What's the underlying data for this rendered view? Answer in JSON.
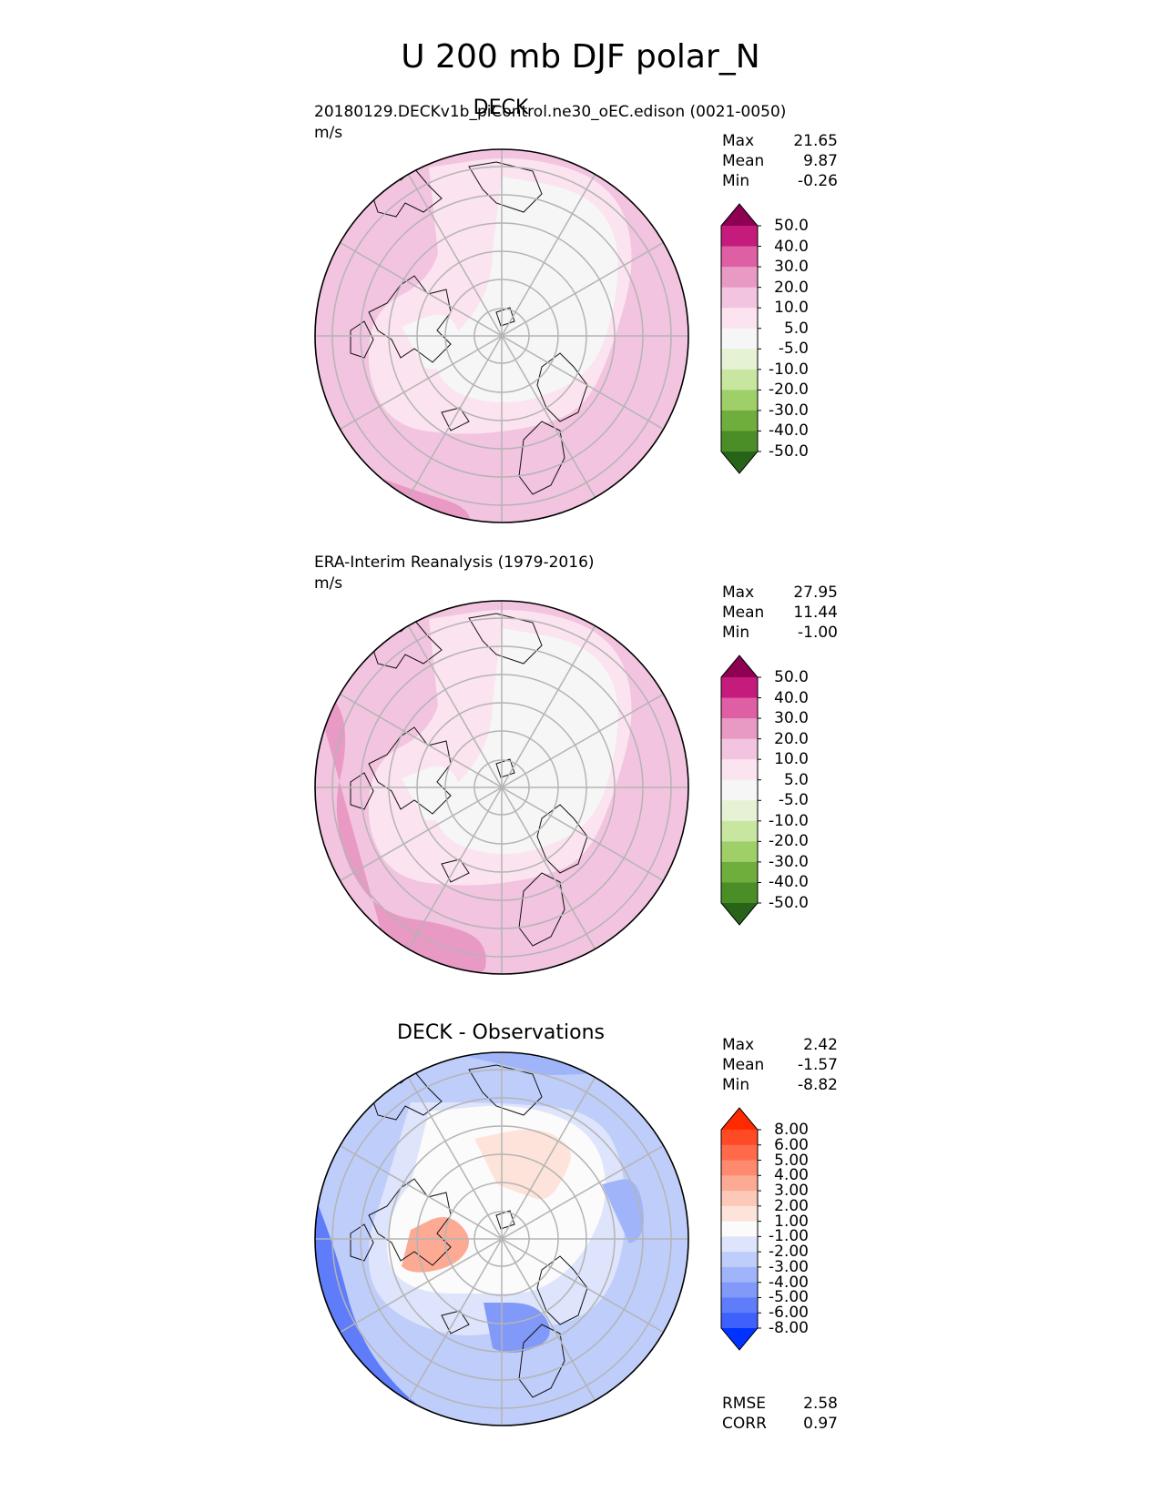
{
  "title": "U 200 mb DJF polar_N",
  "panels": [
    {
      "title": "DECK",
      "subtitle": "20180129.DECKv1b_piControl.ne30_oEC.edison (0021-0050)",
      "units": "m/s",
      "stats": [
        {
          "label": "Max",
          "value": "21.65"
        },
        {
          "label": "Mean",
          "value": "9.87"
        },
        {
          "label": "Min",
          "value": "-0.26"
        }
      ],
      "colorbar": {
        "ticks": [
          "50.0",
          "40.0",
          "30.0",
          "20.0",
          "10.0",
          "5.0",
          "-5.0",
          "-10.0",
          "-20.0",
          "-30.0",
          "-40.0",
          "-50.0"
        ],
        "top_color": "#8e0152",
        "bottom_color": "#276419",
        "colors": [
          "#c51b7d",
          "#de5fa4",
          "#e899c4",
          "#f2c4df",
          "#fbe3ef",
          "#f6f6f6",
          "#e5f2d3",
          "#c9e6a1",
          "#9fcf69",
          "#6fad3d",
          "#4b8e27"
        ]
      }
    },
    {
      "title": "",
      "subtitle": "ERA-Interim Reanalysis (1979-2016)",
      "units": "m/s",
      "stats": [
        {
          "label": "Max",
          "value": "27.95"
        },
        {
          "label": "Mean",
          "value": "11.44"
        },
        {
          "label": "Min",
          "value": "-1.00"
        }
      ],
      "colorbar": {
        "ticks": [
          "50.0",
          "40.0",
          "30.0",
          "20.0",
          "10.0",
          "5.0",
          "-5.0",
          "-10.0",
          "-20.0",
          "-30.0",
          "-40.0",
          "-50.0"
        ],
        "top_color": "#8e0152",
        "bottom_color": "#276419",
        "colors": [
          "#c51b7d",
          "#de5fa4",
          "#e899c4",
          "#f2c4df",
          "#fbe3ef",
          "#f6f6f6",
          "#e5f2d3",
          "#c9e6a1",
          "#9fcf69",
          "#6fad3d",
          "#4b8e27"
        ]
      }
    },
    {
      "title": "DECK - Observations",
      "subtitle": "",
      "units": "",
      "stats": [
        {
          "label": "Max",
          "value": "2.42"
        },
        {
          "label": "Mean",
          "value": "-1.57"
        },
        {
          "label": "Min",
          "value": "-8.82"
        }
      ],
      "metrics": [
        {
          "label": "RMSE",
          "value": "2.58"
        },
        {
          "label": "CORR",
          "value": "0.97"
        }
      ],
      "colorbar": {
        "ticks": [
          "8.00",
          "6.00",
          "5.00",
          "4.00",
          "3.00",
          "2.00",
          "1.00",
          "-1.00",
          "-2.00",
          "-3.00",
          "-4.00",
          "-5.00",
          "-6.00",
          "-8.00"
        ],
        "top_color": "#ff2a00",
        "bottom_color": "#0033ff",
        "colors": [
          "#ff4b25",
          "#ff6a4a",
          "#fd8a6e",
          "#fcaa94",
          "#fdc8b8",
          "#fde3da",
          "#fbfbfb",
          "#dde4fb",
          "#bfcdfa",
          "#a0b5f9",
          "#8199f8",
          "#5f7dfa",
          "#3e60fb"
        ]
      }
    }
  ],
  "chart_data": [
    {
      "type": "heatmap",
      "projection": "north polar stereographic",
      "title": "DECK",
      "subtitle": "20180129.DECKv1b_piControl.ne30_oEC.edison (0021-0050)",
      "units": "m/s",
      "levels": [
        -50,
        -40,
        -30,
        -20,
        -10,
        -5,
        5,
        10,
        20,
        30,
        40,
        50
      ],
      "max": 21.65,
      "mean": 9.87,
      "min": -0.26
    },
    {
      "type": "heatmap",
      "projection": "north polar stereographic",
      "title": "ERA-Interim Reanalysis (1979-2016)",
      "units": "m/s",
      "levels": [
        -50,
        -40,
        -30,
        -20,
        -10,
        -5,
        5,
        10,
        20,
        30,
        40,
        50
      ],
      "max": 27.95,
      "mean": 11.44,
      "min": -1.0
    },
    {
      "type": "heatmap",
      "projection": "north polar stereographic",
      "title": "DECK - Observations",
      "levels": [
        -8,
        -6,
        -5,
        -4,
        -3,
        -2,
        -1,
        1,
        2,
        3,
        4,
        5,
        6,
        8
      ],
      "max": 2.42,
      "mean": -1.57,
      "min": -8.82,
      "rmse": 2.58,
      "corr": 0.97
    }
  ]
}
